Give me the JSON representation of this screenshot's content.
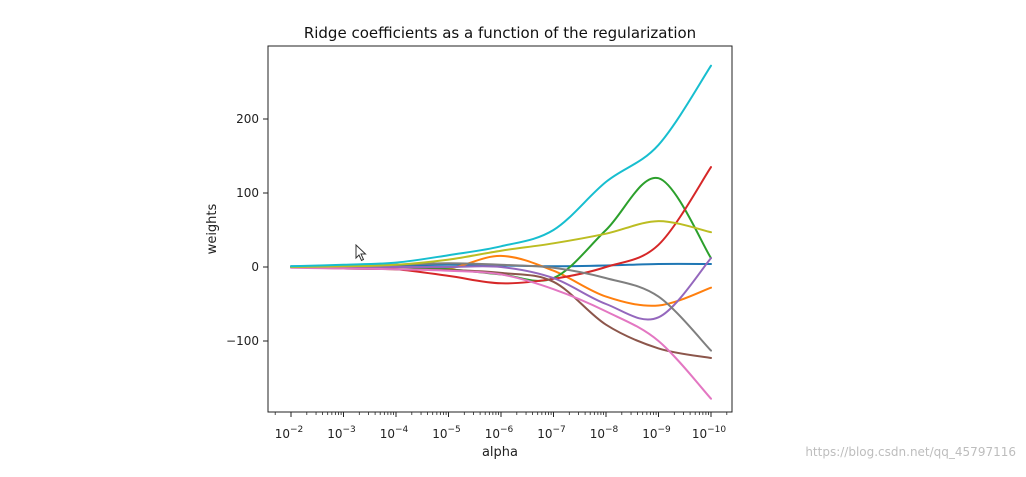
{
  "chart_data": {
    "type": "line",
    "title": "Ridge coefficients as a function of the regularization",
    "xlabel": "alpha",
    "ylabel": "weights",
    "x_scale": "log",
    "x_axis_reversed": true,
    "xlim": [
      0.01,
      1e-10
    ],
    "ylim": [
      -200,
      290
    ],
    "y_ticks": [
      {
        "value": 200,
        "label": "200"
      },
      {
        "value": 100,
        "label": "100"
      },
      {
        "value": 0,
        "label": "0"
      },
      {
        "value": -100,
        "label": "−100"
      }
    ],
    "x_ticks": [
      {
        "value": 0.01,
        "base": "10",
        "exp": "−2"
      },
      {
        "value": 0.001,
        "base": "10",
        "exp": "−3"
      },
      {
        "value": 0.0001,
        "base": "10",
        "exp": "−4"
      },
      {
        "value": 1e-05,
        "base": "10",
        "exp": "−5"
      },
      {
        "value": 1e-06,
        "base": "10",
        "exp": "−6"
      },
      {
        "value": 1e-07,
        "base": "10",
        "exp": "−7"
      },
      {
        "value": 1e-08,
        "base": "10",
        "exp": "−8"
      },
      {
        "value": 1e-09,
        "base": "10",
        "exp": "−9"
      },
      {
        "value": 1e-10,
        "base": "10",
        "exp": "−10"
      }
    ],
    "legend": "none",
    "grid": false,
    "x": [
      0.01,
      0.001,
      0.0001,
      1e-05,
      1e-06,
      1e-07,
      1e-08,
      1e-09,
      1e-10
    ],
    "series": [
      {
        "color": "#1f77b4",
        "values": [
          1,
          1,
          2,
          3,
          2,
          1,
          2,
          4,
          4
        ]
      },
      {
        "color": "#ff7f0e",
        "values": [
          0,
          -1,
          -3,
          -2,
          15,
          -5,
          -40,
          -52,
          -28
        ]
      },
      {
        "color": "#2ca02c",
        "values": [
          0,
          0,
          0,
          -3,
          -10,
          -15,
          50,
          120,
          12
        ]
      },
      {
        "color": "#d62728",
        "values": [
          0,
          -1,
          -3,
          -12,
          -22,
          -16,
          0,
          30,
          135
        ]
      },
      {
        "color": "#9467bd",
        "values": [
          0,
          0,
          0,
          0,
          0,
          -15,
          -50,
          -68,
          12
        ]
      },
      {
        "color": "#8c564b",
        "values": [
          0,
          -2,
          -3,
          -4,
          -8,
          -20,
          -78,
          -110,
          -123
        ]
      },
      {
        "color": "#e377c2",
        "values": [
          -1,
          -2,
          -3,
          -5,
          -10,
          -30,
          -60,
          -100,
          -178
        ]
      },
      {
        "color": "#7f7f7f",
        "values": [
          0,
          2,
          3,
          5,
          3,
          -1,
          -15,
          -40,
          -113
        ]
      },
      {
        "color": "#bcbd22",
        "values": [
          0,
          1,
          3,
          10,
          22,
          32,
          45,
          62,
          47
        ]
      },
      {
        "color": "#17becf",
        "values": [
          1,
          3,
          6,
          16,
          28,
          50,
          115,
          165,
          272
        ]
      }
    ]
  },
  "watermark": "https://blog.csdn.net/qq_45797116"
}
